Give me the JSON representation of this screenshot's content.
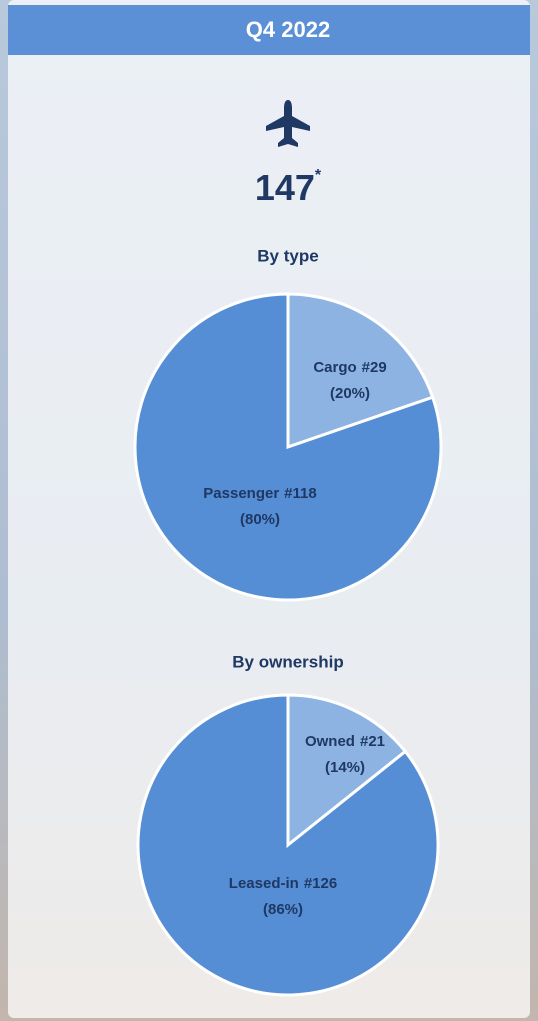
{
  "header": {
    "title": "Q4 2022"
  },
  "total": {
    "value": "147",
    "mark": "*"
  },
  "chart_data": [
    {
      "type": "pie",
      "title": "By type",
      "categories": [
        "Cargo",
        "Passenger"
      ],
      "values": [
        29,
        118
      ],
      "value_labels": [
        "#29",
        "#118"
      ],
      "percent_labels": [
        "(20%)",
        "(80%)"
      ],
      "colors": [
        "#8db3e2",
        "#558ed5"
      ]
    },
    {
      "type": "pie",
      "title": "By ownership",
      "categories": [
        "Owned",
        "Leased-in"
      ],
      "values": [
        21,
        126
      ],
      "value_labels": [
        "#21",
        "#126"
      ],
      "percent_labels": [
        "(14%)",
        "(86%)"
      ],
      "colors": [
        "#8db3e2",
        "#558ed5"
      ]
    }
  ]
}
